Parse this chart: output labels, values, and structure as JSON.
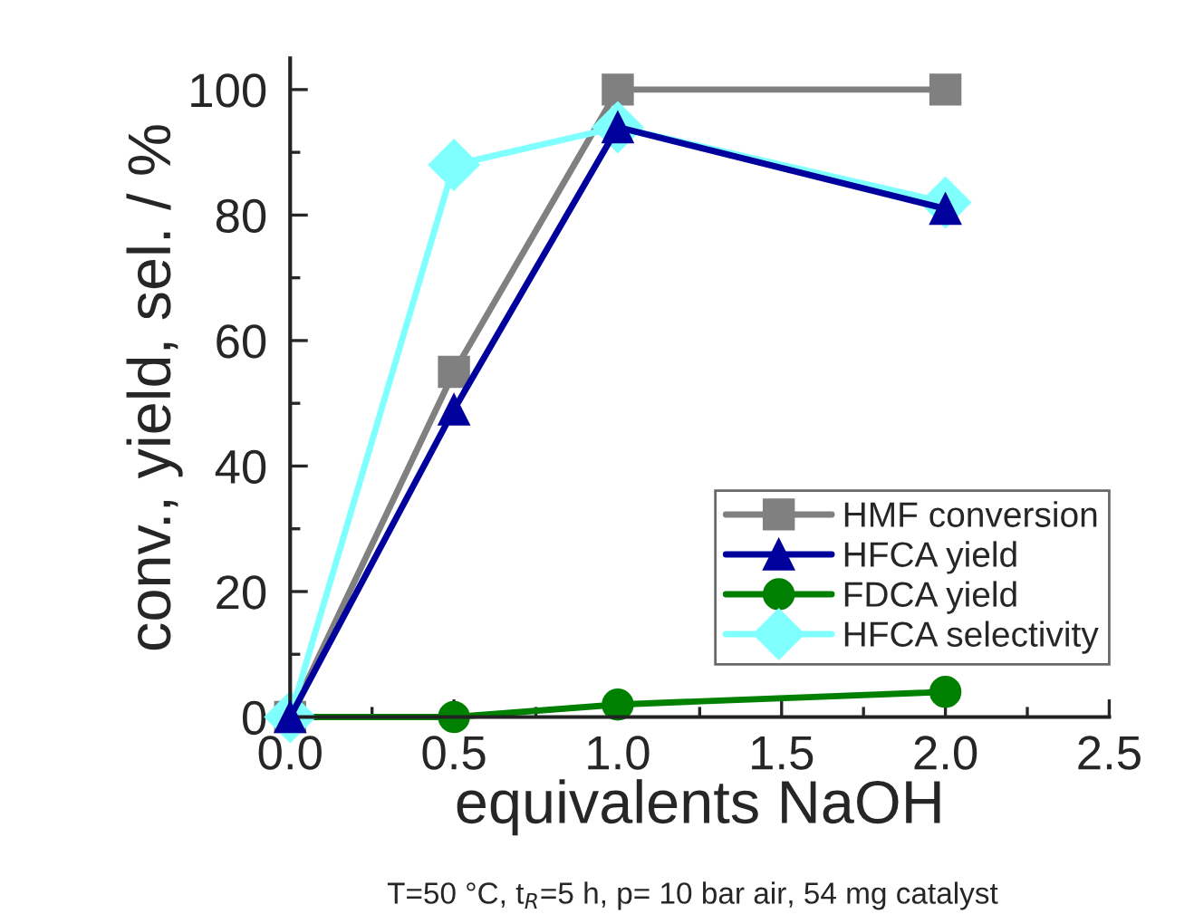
{
  "chart_data": {
    "type": "line",
    "xlabel": "equivalents NaOH",
    "ylabel": "conv., yield, sel. / %",
    "x": [
      0.0,
      0.5,
      1.0,
      2.0
    ],
    "series": [
      {
        "name": "HMF conversion",
        "color": "#808080",
        "marker": "square",
        "values": [
          0,
          55,
          100,
          100
        ]
      },
      {
        "name": "HFCA yield",
        "color": "#00009c",
        "marker": "triangle",
        "values": [
          0,
          49,
          94,
          81
        ]
      },
      {
        "name": "FDCA yield",
        "color": "#008000",
        "marker": "circle",
        "values": [
          0,
          0,
          2,
          4
        ]
      },
      {
        "name": "HFCA selectivity",
        "color": "#80ffff",
        "marker": "diamond",
        "values": [
          0,
          88,
          94,
          82
        ]
      }
    ],
    "xlim": [
      0,
      2.5
    ],
    "xticks": [
      {
        "value": 0,
        "label": "0.0"
      },
      0.5,
      {
        "value": 1,
        "label": "1.0"
      },
      1.5,
      {
        "value": 2,
        "label": "2.0"
      },
      2.5
    ],
    "ylim": [
      0,
      105
    ],
    "yticks": [
      0,
      20,
      40,
      60,
      80,
      100
    ],
    "legend": "bottom right",
    "grid": false,
    "line_style": "solid",
    "annotations": [
      "T=50 °C, t$_{R}$=5 h, p= 10 bar air, 54 mg catalyst"
    ]
  }
}
